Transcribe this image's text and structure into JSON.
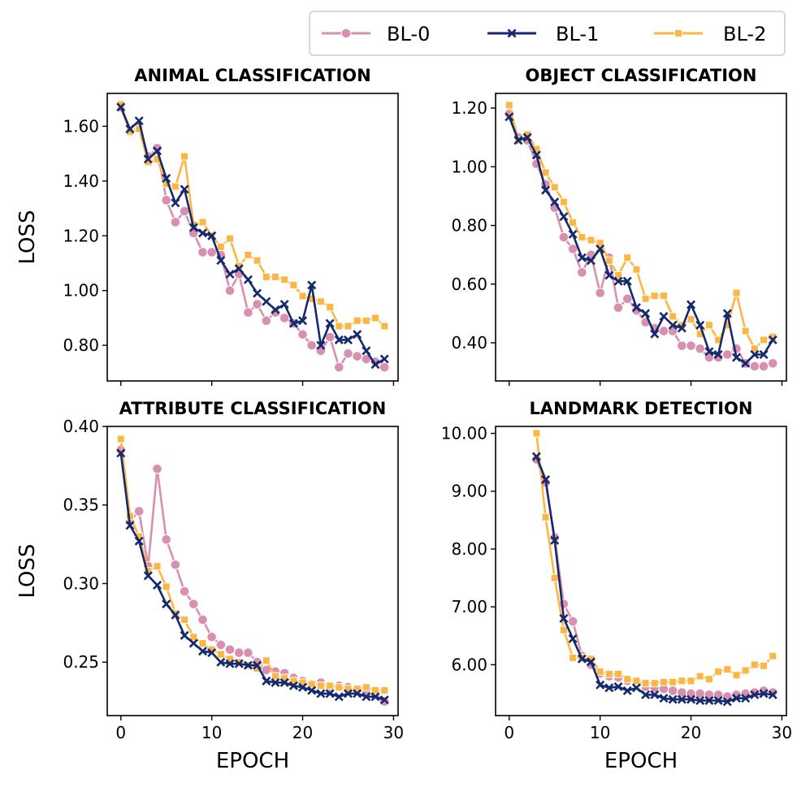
{
  "legend": {
    "location": "top-right",
    "entries": [
      {
        "label": "BL-0",
        "color": "#d98fb0",
        "marker": "circle"
      },
      {
        "label": "BL-1",
        "color": "#152a6e",
        "marker": "x"
      },
      {
        "label": "BL-2",
        "color": "#fbb644",
        "marker": "square"
      }
    ]
  },
  "chart_data": [
    {
      "type": "line",
      "title": "ANIMAL CLASSIFICATION",
      "xlabel": "",
      "ylabel": "LOSS",
      "xlim": [
        -1.5,
        30.5
      ],
      "ylim": [
        0.67,
        1.72
      ],
      "xticks": [
        0,
        10,
        20,
        30
      ],
      "xtick_labels": [
        "",
        "",
        "",
        ""
      ],
      "yticks": [
        0.8,
        1.0,
        1.2,
        1.4,
        1.6
      ],
      "ytick_labels": [
        "0.80",
        "1.00",
        "1.20",
        "1.40",
        "1.60"
      ],
      "x": [
        0,
        1,
        2,
        3,
        4,
        5,
        6,
        7,
        8,
        9,
        10,
        11,
        12,
        13,
        14,
        15,
        16,
        17,
        18,
        19,
        20,
        21,
        22,
        23,
        24,
        25,
        26,
        27,
        28,
        29
      ],
      "series": [
        {
          "name": "BL-0",
          "values": [
            1.67,
            1.58,
            1.6,
            1.49,
            1.52,
            1.33,
            1.25,
            1.29,
            1.21,
            1.14,
            1.14,
            1.13,
            1.0,
            1.06,
            0.92,
            0.95,
            0.89,
            0.92,
            0.9,
            0.88,
            0.84,
            0.8,
            0.78,
            0.83,
            0.72,
            0.77,
            0.76,
            0.75,
            0.74,
            0.72
          ]
        },
        {
          "name": "BL-1",
          "values": [
            1.67,
            1.59,
            1.62,
            1.48,
            1.51,
            1.41,
            1.32,
            1.37,
            1.23,
            1.21,
            1.2,
            1.11,
            1.06,
            1.08,
            1.04,
            0.99,
            0.96,
            0.93,
            0.95,
            0.88,
            0.89,
            1.02,
            0.8,
            0.88,
            0.82,
            0.82,
            0.84,
            0.78,
            0.73,
            0.75
          ]
        },
        {
          "name": "BL-2",
          "values": [
            1.68,
            1.58,
            1.59,
            1.47,
            1.48,
            1.39,
            1.38,
            1.49,
            1.24,
            1.25,
            1.2,
            1.16,
            1.19,
            1.09,
            1.13,
            1.11,
            1.05,
            1.05,
            1.04,
            1.02,
            0.98,
            0.97,
            0.96,
            0.94,
            0.87,
            0.87,
            0.89,
            0.89,
            0.9,
            0.87
          ]
        }
      ]
    },
    {
      "type": "line",
      "title": "OBJECT CLASSIFICATION",
      "xlabel": "",
      "ylabel": "",
      "xlim": [
        -1.5,
        30.5
      ],
      "ylim": [
        0.27,
        1.25
      ],
      "xticks": [
        0,
        10,
        20,
        30
      ],
      "xtick_labels": [
        "",
        "",
        "",
        ""
      ],
      "yticks": [
        0.4,
        0.6,
        0.8,
        1.0,
        1.2
      ],
      "ytick_labels": [
        "0.40",
        "0.60",
        "0.80",
        "1.00",
        "1.20"
      ],
      "x": [
        0,
        1,
        2,
        3,
        4,
        5,
        6,
        7,
        8,
        9,
        10,
        11,
        12,
        13,
        14,
        15,
        16,
        17,
        18,
        19,
        20,
        21,
        22,
        23,
        24,
        25,
        26,
        27,
        28,
        29
      ],
      "series": [
        {
          "name": "BL-0",
          "values": [
            1.18,
            1.1,
            1.09,
            1.01,
            0.94,
            0.86,
            0.76,
            0.72,
            0.64,
            0.7,
            0.57,
            0.69,
            0.52,
            0.55,
            0.51,
            0.47,
            0.45,
            0.44,
            0.44,
            0.39,
            0.39,
            0.38,
            0.35,
            0.35,
            0.36,
            0.38,
            0.33,
            0.32,
            0.32,
            0.33
          ]
        },
        {
          "name": "BL-1",
          "values": [
            1.17,
            1.09,
            1.1,
            1.04,
            0.92,
            0.88,
            0.83,
            0.77,
            0.69,
            0.68,
            0.72,
            0.63,
            0.61,
            0.61,
            0.52,
            0.5,
            0.43,
            0.49,
            0.46,
            0.45,
            0.53,
            0.46,
            0.37,
            0.36,
            0.5,
            0.35,
            0.33,
            0.36,
            0.36,
            0.41
          ]
        },
        {
          "name": "BL-2",
          "values": [
            1.21,
            1.09,
            1.11,
            1.06,
            0.98,
            0.93,
            0.88,
            0.81,
            0.76,
            0.75,
            0.74,
            0.68,
            0.63,
            0.69,
            0.65,
            0.55,
            0.56,
            0.56,
            0.49,
            0.46,
            0.48,
            0.43,
            0.46,
            0.41,
            0.46,
            0.57,
            0.44,
            0.38,
            0.41,
            0.42
          ]
        }
      ]
    },
    {
      "type": "line",
      "title": "ATTRIBUTE CLASSIFICATION",
      "xlabel": "EPOCH",
      "ylabel": "LOSS",
      "xlim": [
        -1.5,
        30.5
      ],
      "ylim": [
        0.216,
        0.4
      ],
      "xticks": [
        0,
        10,
        20,
        30
      ],
      "xtick_labels": [
        "0",
        "10",
        "20",
        "30"
      ],
      "yticks": [
        0.25,
        0.3,
        0.35,
        0.4
      ],
      "ytick_labels": [
        "0.25",
        "0.30",
        "0.35",
        "0.40"
      ],
      "x": [
        0,
        1,
        2,
        3,
        4,
        5,
        6,
        7,
        8,
        9,
        10,
        11,
        12,
        13,
        14,
        15,
        16,
        17,
        18,
        19,
        20,
        21,
        22,
        23,
        24,
        25,
        26,
        27,
        28,
        29
      ],
      "series": [
        {
          "name": "BL-0",
          "values": [
            0.385,
            0.34,
            0.346,
            0.311,
            0.373,
            0.328,
            0.312,
            0.295,
            0.287,
            0.277,
            0.266,
            0.261,
            0.258,
            0.256,
            0.256,
            0.25,
            0.245,
            0.244,
            0.243,
            0.24,
            0.238,
            0.236,
            0.237,
            0.233,
            0.235,
            0.234,
            0.233,
            0.232,
            0.23,
            0.225
          ]
        },
        {
          "name": "BL-1",
          "values": [
            0.383,
            0.337,
            0.327,
            0.305,
            0.299,
            0.287,
            0.28,
            0.267,
            0.262,
            0.257,
            0.256,
            0.25,
            0.249,
            0.249,
            0.248,
            0.248,
            0.238,
            0.237,
            0.237,
            0.235,
            0.234,
            0.232,
            0.23,
            0.23,
            0.228,
            0.23,
            0.23,
            0.228,
            0.228,
            0.226
          ]
        },
        {
          "name": "BL-2",
          "values": [
            0.392,
            0.343,
            0.33,
            0.308,
            0.311,
            0.298,
            0.281,
            0.277,
            0.266,
            0.262,
            0.258,
            0.255,
            0.252,
            0.25,
            0.248,
            0.246,
            0.251,
            0.241,
            0.24,
            0.238,
            0.237,
            0.236,
            0.235,
            0.235,
            0.234,
            0.233,
            0.233,
            0.234,
            0.232,
            0.232
          ]
        }
      ]
    },
    {
      "type": "line",
      "title": "LANDMARK DETECTION",
      "xlabel": "EPOCH",
      "ylabel": "",
      "xlim": [
        -1.5,
        30.5
      ],
      "ylim": [
        5.12,
        10.12
      ],
      "xticks": [
        0,
        10,
        20,
        30
      ],
      "xtick_labels": [
        "0",
        "10",
        "20",
        "30"
      ],
      "yticks": [
        6,
        7,
        8,
        9,
        10
      ],
      "ytick_labels": [
        "6.00",
        "7.00",
        "8.00",
        "9.00",
        "10.00"
      ],
      "x": [
        3,
        4,
        5,
        6,
        7,
        8,
        9,
        10,
        11,
        12,
        13,
        14,
        15,
        16,
        17,
        18,
        19,
        20,
        21,
        22,
        23,
        24,
        25,
        26,
        27,
        28,
        29
      ],
      "series": [
        {
          "name": "BL-0",
          "values": [
            9.55,
            9.15,
            8.2,
            7.05,
            6.75,
            6.15,
            6.0,
            5.85,
            5.8,
            5.78,
            5.72,
            5.72,
            5.62,
            5.6,
            5.58,
            5.55,
            5.52,
            5.5,
            5.5,
            5.48,
            5.48,
            5.45,
            5.48,
            5.5,
            5.52,
            5.55,
            5.52
          ]
        },
        {
          "name": "BL-1",
          "values": [
            9.6,
            9.2,
            8.15,
            6.8,
            6.45,
            6.1,
            6.05,
            5.65,
            5.6,
            5.62,
            5.55,
            5.6,
            5.48,
            5.48,
            5.42,
            5.4,
            5.4,
            5.4,
            5.38,
            5.38,
            5.38,
            5.36,
            5.42,
            5.42,
            5.48,
            5.5,
            5.48
          ]
        },
        {
          "name": "BL-2",
          "values": [
            10.0,
            8.55,
            7.5,
            6.6,
            6.12,
            6.12,
            6.1,
            5.88,
            5.84,
            5.84,
            5.75,
            5.72,
            5.68,
            5.68,
            5.7,
            5.7,
            5.72,
            5.72,
            5.8,
            5.75,
            5.88,
            5.92,
            5.82,
            5.9,
            6.0,
            5.98,
            6.15
          ]
        }
      ]
    }
  ]
}
